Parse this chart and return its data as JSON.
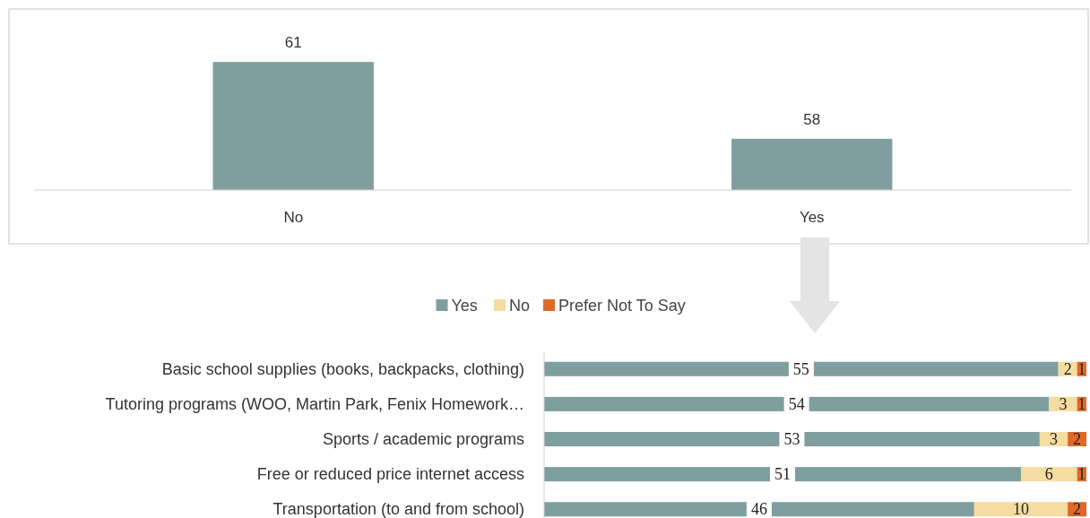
{
  "chart_data": [
    {
      "type": "bar",
      "categories": [
        "No",
        "Yes"
      ],
      "values": [
        61,
        58
      ],
      "color": "#7f9ea0",
      "ylim": [
        56,
        63
      ],
      "data_labels": true,
      "tick_labels": "x"
    },
    {
      "type": "bar",
      "orientation": "horizontal",
      "stacked": true,
      "categories": [
        "Basic school supplies (books, backpacks, clothing)",
        "Tutoring programs (WOO, Martin Park, Fenix Homework…",
        "Sports / academic programs",
        "Free or reduced price internet access",
        "Transportation (to and from school)"
      ],
      "series": [
        {
          "name": "Yes",
          "color": "#7f9ea0",
          "values": [
            55,
            54,
            53,
            51,
            46
          ]
        },
        {
          "name": "No",
          "color": "#f5dca0",
          "values": [
            2,
            3,
            3,
            6,
            10
          ]
        },
        {
          "name": "Prefer Not To Say",
          "color": "#e0682a",
          "values": [
            1,
            1,
            2,
            1,
            2
          ]
        }
      ],
      "xlim": [
        0,
        58
      ],
      "data_labels": true,
      "legend": "top",
      "tick_labels": "y"
    }
  ]
}
